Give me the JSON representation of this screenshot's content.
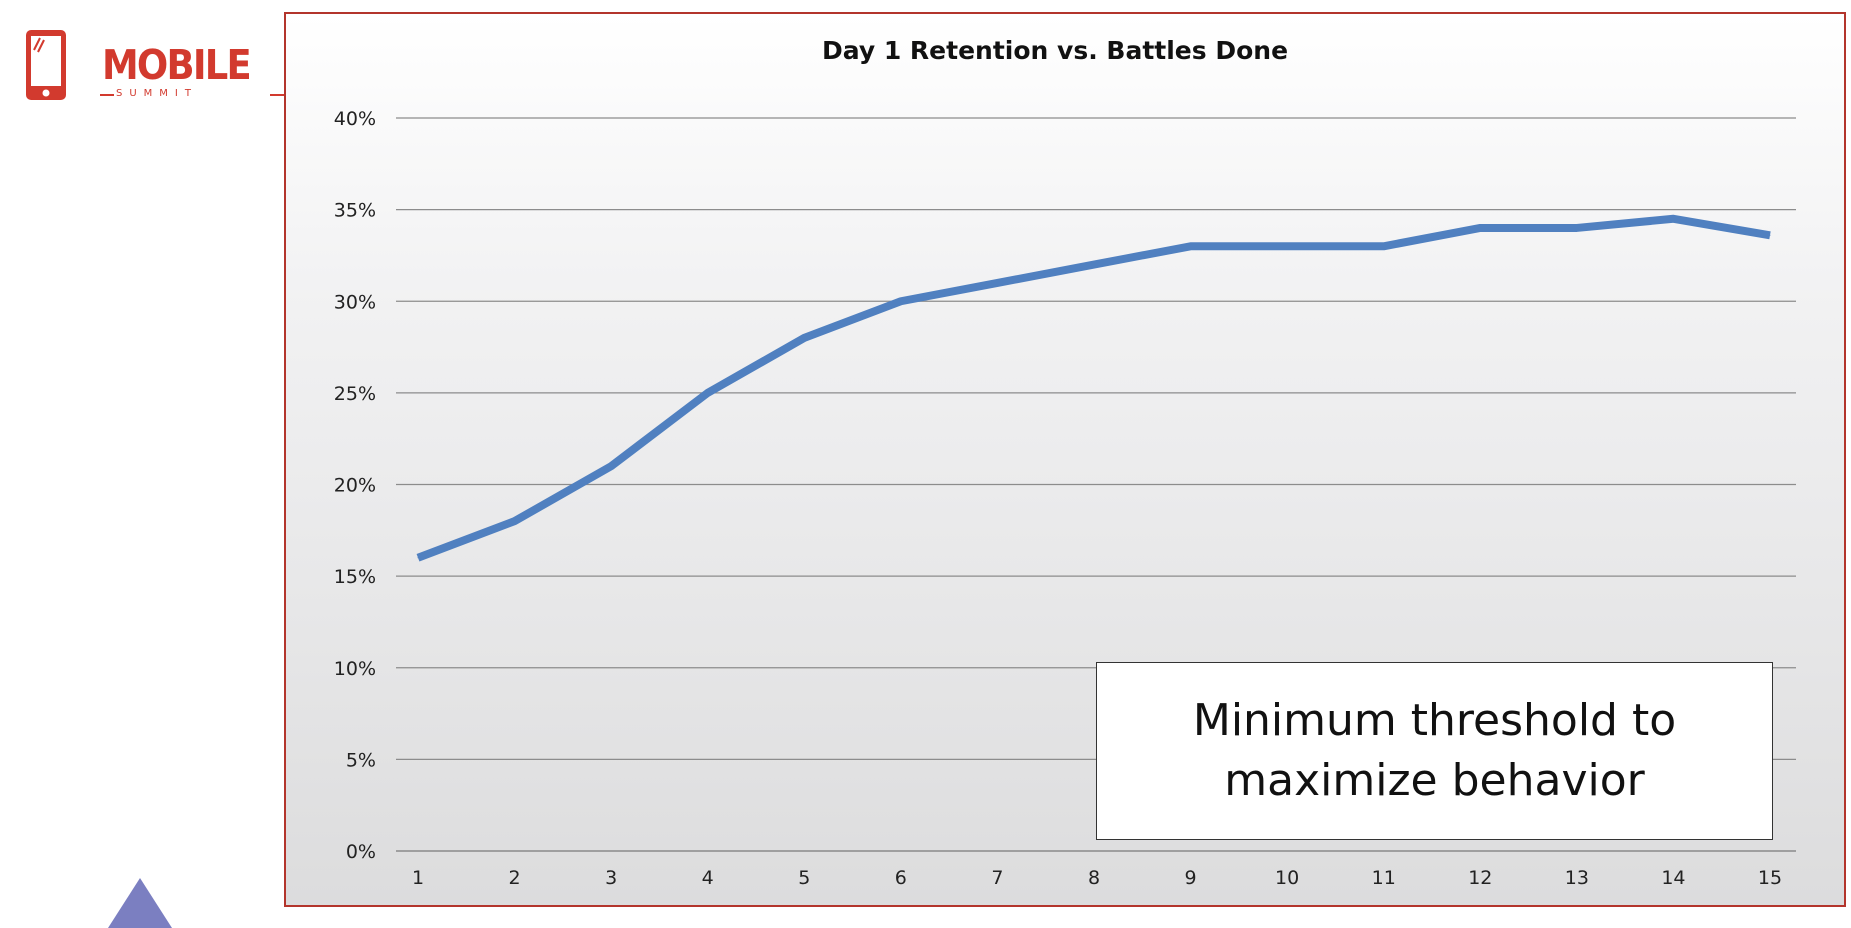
{
  "logo": {
    "name": "MOBILE",
    "tagline": "SUMMIT",
    "color": "#d23a2e"
  },
  "chart_data": {
    "type": "line",
    "title": "Day 1 Retention vs. Battles Done",
    "xlabel": "",
    "ylabel": "",
    "categories": [
      1,
      2,
      3,
      4,
      5,
      6,
      7,
      8,
      9,
      10,
      11,
      12,
      13,
      14,
      15
    ],
    "series": [
      {
        "values": [
          0.16,
          0.18,
          0.21,
          0.25,
          0.28,
          0.3,
          0.31,
          0.32,
          0.33,
          0.33,
          0.33,
          0.34,
          0.34,
          0.345,
          0.336
        ],
        "color": "#5080c0"
      }
    ],
    "ylim": [
      0,
      0.4
    ],
    "yticks": [
      "0%",
      "5%",
      "10%",
      "15%",
      "20%",
      "25%",
      "30%",
      "35%",
      "40%"
    ],
    "grid": true,
    "legend": "none"
  },
  "callout": {
    "text": "Minimum threshold to maximize behavior"
  },
  "colors": {
    "frame_border": "#b3352c",
    "grid": "#8c8c8c",
    "triangle": "#7b7fc1"
  }
}
